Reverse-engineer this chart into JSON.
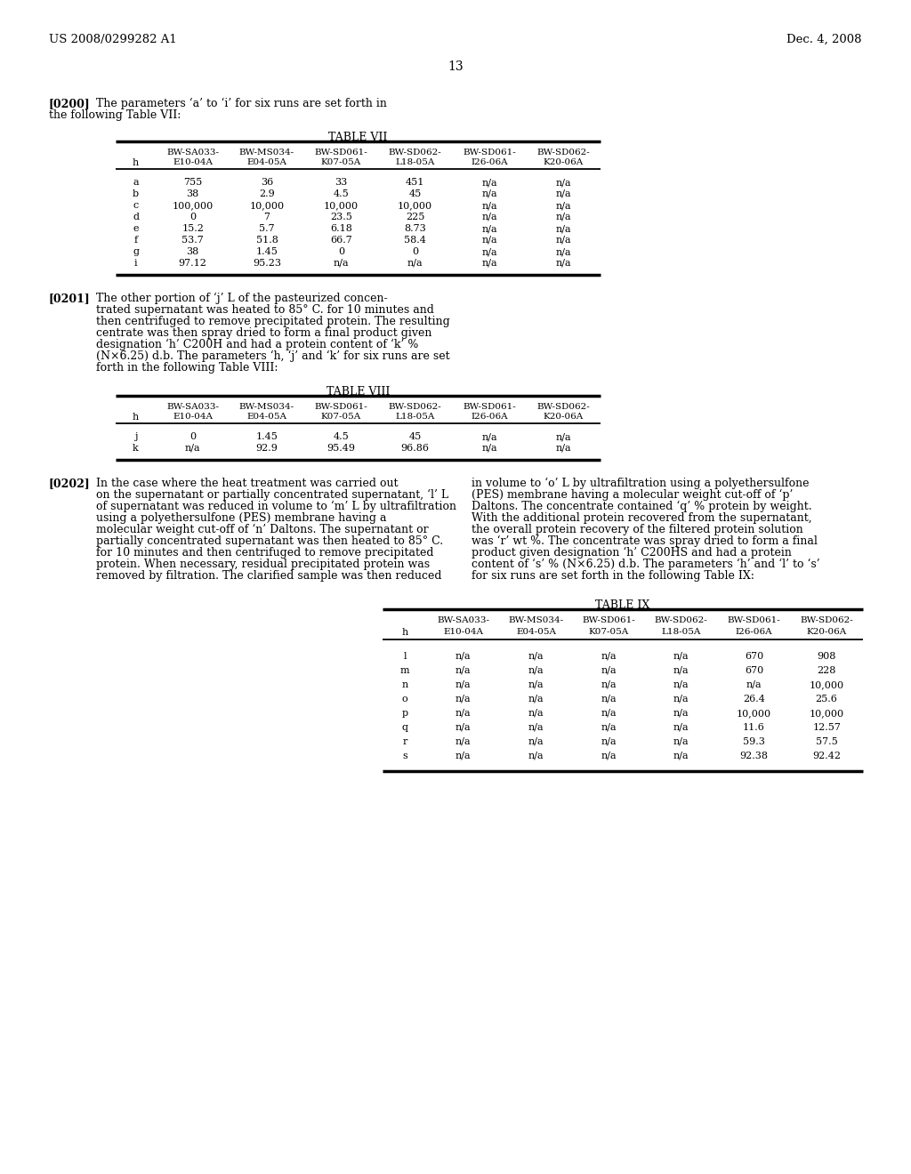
{
  "header_left": "US 2008/0299282 A1",
  "header_right": "Dec. 4, 2008",
  "page_number": "13",
  "table7_title": "TABLE VII",
  "table7_col_headers_top": [
    "BW-SA033-",
    "BW-MS034-",
    "BW-SD061-",
    "BW-SD062-",
    "BW-SD061-",
    "BW-SD062-"
  ],
  "table7_col_headers_bot": [
    "E10-04A",
    "E04-05A",
    "K07-05A",
    "L18-05A",
    "I26-06A",
    "K20-06A"
  ],
  "table7_rows": [
    [
      "a",
      "755",
      "36",
      "33",
      "451",
      "n/a",
      "n/a"
    ],
    [
      "b",
      "38",
      "2.9",
      "4.5",
      "45",
      "n/a",
      "n/a"
    ],
    [
      "c",
      "100,000",
      "10,000",
      "10,000",
      "10,000",
      "n/a",
      "n/a"
    ],
    [
      "d",
      "0",
      "7",
      "23.5",
      "225",
      "n/a",
      "n/a"
    ],
    [
      "e",
      "15.2",
      "5.7",
      "6.18",
      "8.73",
      "n/a",
      "n/a"
    ],
    [
      "f",
      "53.7",
      "51.8",
      "66.7",
      "58.4",
      "n/a",
      "n/a"
    ],
    [
      "g",
      "38",
      "1.45",
      "0",
      "0",
      "n/a",
      "n/a"
    ],
    [
      "i",
      "97.12",
      "95.23",
      "n/a",
      "n/a",
      "n/a",
      "n/a"
    ]
  ],
  "table8_title": "TABLE VIII",
  "table8_col_headers_top": [
    "BW-SA033-",
    "BW-MS034-",
    "BW-SD061-",
    "BW-SD062-",
    "BW-SD061-",
    "BW-SD062-"
  ],
  "table8_col_headers_bot": [
    "E10-04A",
    "E04-05A",
    "K07-05A",
    "L18-05A",
    "I26-06A",
    "K20-06A"
  ],
  "table8_rows": [
    [
      "j",
      "0",
      "1.45",
      "4.5",
      "45",
      "n/a",
      "n/a"
    ],
    [
      "k",
      "n/a",
      "92.9",
      "95.49",
      "96.86",
      "n/a",
      "n/a"
    ]
  ],
  "table9_title": "TABLE IX",
  "table9_col_headers_top": [
    "BW-SA033-",
    "BW-MS034-",
    "BW-SD061-",
    "BW-SD062-",
    "BW-SD061-",
    "BW-SD062-"
  ],
  "table9_col_headers_bot": [
    "E10-04A",
    "E04-05A",
    "K07-05A",
    "L18-05A",
    "I26-06A",
    "K20-06A"
  ],
  "table9_rows": [
    [
      "l",
      "n/a",
      "n/a",
      "n/a",
      "n/a",
      "670",
      "908"
    ],
    [
      "m",
      "n/a",
      "n/a",
      "n/a",
      "n/a",
      "670",
      "228"
    ],
    [
      "n",
      "n/a",
      "n/a",
      "n/a",
      "n/a",
      "n/a",
      "10,000"
    ],
    [
      "o",
      "n/a",
      "n/a",
      "n/a",
      "n/a",
      "26.4",
      "25.6"
    ],
    [
      "p",
      "n/a",
      "n/a",
      "n/a",
      "n/a",
      "10,000",
      "10,000"
    ],
    [
      "q",
      "n/a",
      "n/a",
      "n/a",
      "n/a",
      "11.6",
      "12.57"
    ],
    [
      "r",
      "n/a",
      "n/a",
      "n/a",
      "n/a",
      "59.3",
      "57.5"
    ],
    [
      "s",
      "n/a",
      "n/a",
      "n/a",
      "n/a",
      "92.38",
      "92.42"
    ]
  ],
  "para200_lines": [
    "[0200]   The parameters ‘a’ to ‘i’ for six runs are set forth in",
    "the following Table VII:"
  ],
  "para201_lines": [
    "The other portion of ‘j’ L of the pasteurized concen-",
    "trated supernatant was heated to 85° C. for 10 minutes and",
    "then centrifuged to remove precipitated protein. The resulting",
    "centrate was then spray dried to form a final product given",
    "designation ‘h’ C200H and had a protein content of ‘k’ %",
    "(N×6.25) d.b. The parameters ‘h, ‘j’ and ‘k’ for six runs are set",
    "forth in the following Table VIII:"
  ],
  "para202_left_lines": [
    "In the case where the heat treatment was carried out",
    "on the supernatant or partially concentrated supernatant, ‘l’ L",
    "of supernatant was reduced in volume to ‘m’ L by ultrafiltration",
    "using a polyethersulfone (PES) membrane having a",
    "molecular weight cut-off of ‘n’ Daltons. The supernatant or",
    "partially concentrated supernatant was then heated to 85° C.",
    "for 10 minutes and then centrifuged to remove precipitated",
    "protein. When necessary, residual precipitated protein was",
    "removed by filtration. The clarified sample was then reduced"
  ],
  "para202_right_lines": [
    "in volume to ‘o’ L by ultrafiltration using a polyethersulfone",
    "(PES) membrane having a molecular weight cut-off of ‘p’",
    "Daltons. The concentrate contained ‘q’ % protein by weight.",
    "With the additional protein recovered from the supernatant,",
    "the overall protein recovery of the filtered protein solution",
    "was ‘r’ wt %. The concentrate was spray dried to form a final",
    "product given designation ‘h’ C200HS and had a protein",
    "content of ‘s’ % (N×6.25) d.b. The parameters ‘h’ and ‘l’ to ‘s’",
    "for six runs are set forth in the following Table IX:"
  ]
}
